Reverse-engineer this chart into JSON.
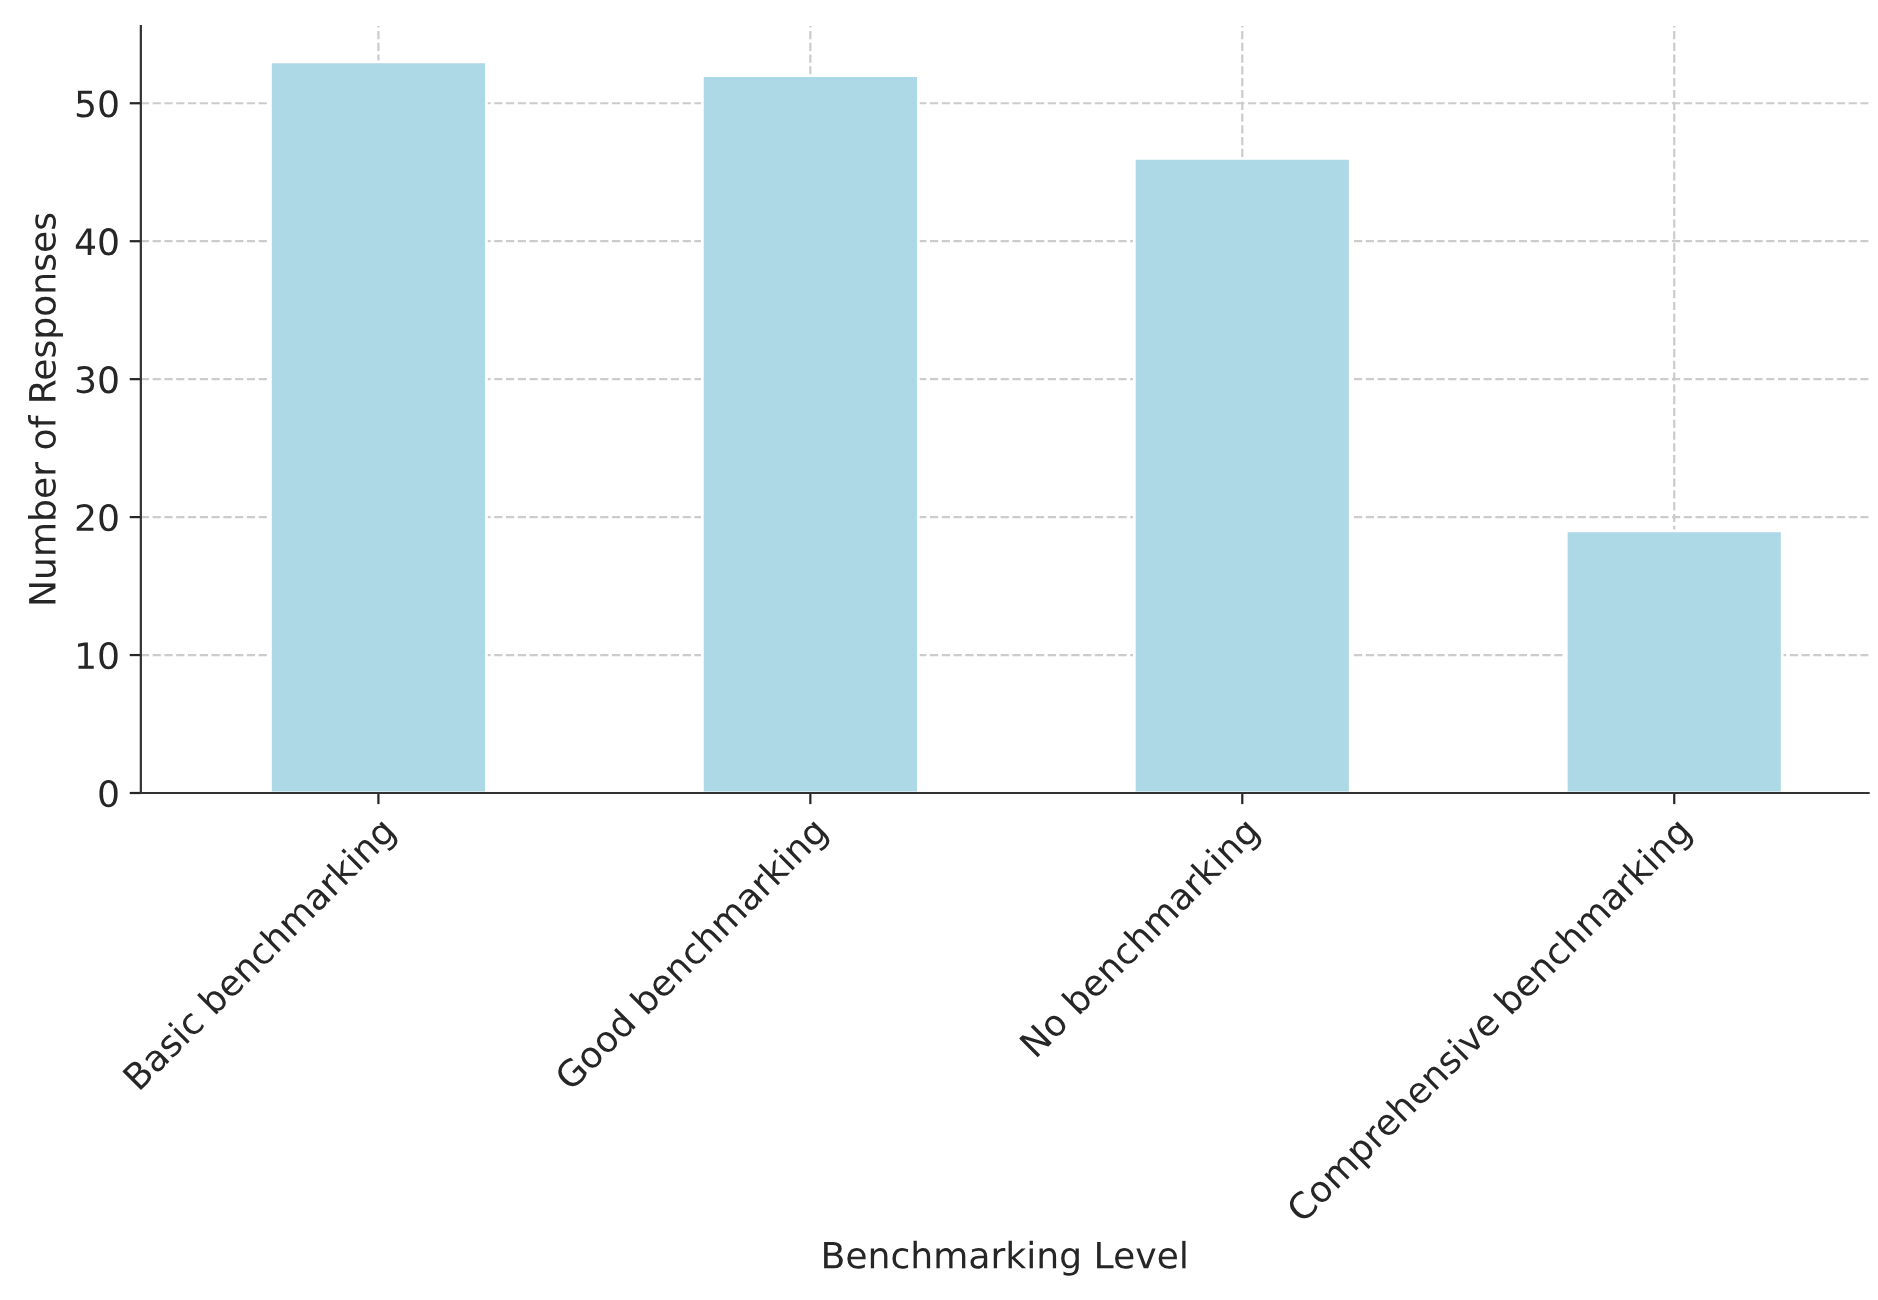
{
  "chart_data": {
    "type": "bar",
    "xlabel": "Benchmarking Level",
    "ylabel": "Number of Responses",
    "categories": [
      "Basic benchmarking",
      "Good benchmarking",
      "No benchmarking",
      "Comprehensive benchmarking"
    ],
    "values": [
      53,
      52,
      46,
      19
    ],
    "color": "#add8e6",
    "ylim": [
      0,
      55.6
    ],
    "yticks": [
      0,
      10,
      20,
      30,
      40,
      50
    ],
    "grid": true
  }
}
